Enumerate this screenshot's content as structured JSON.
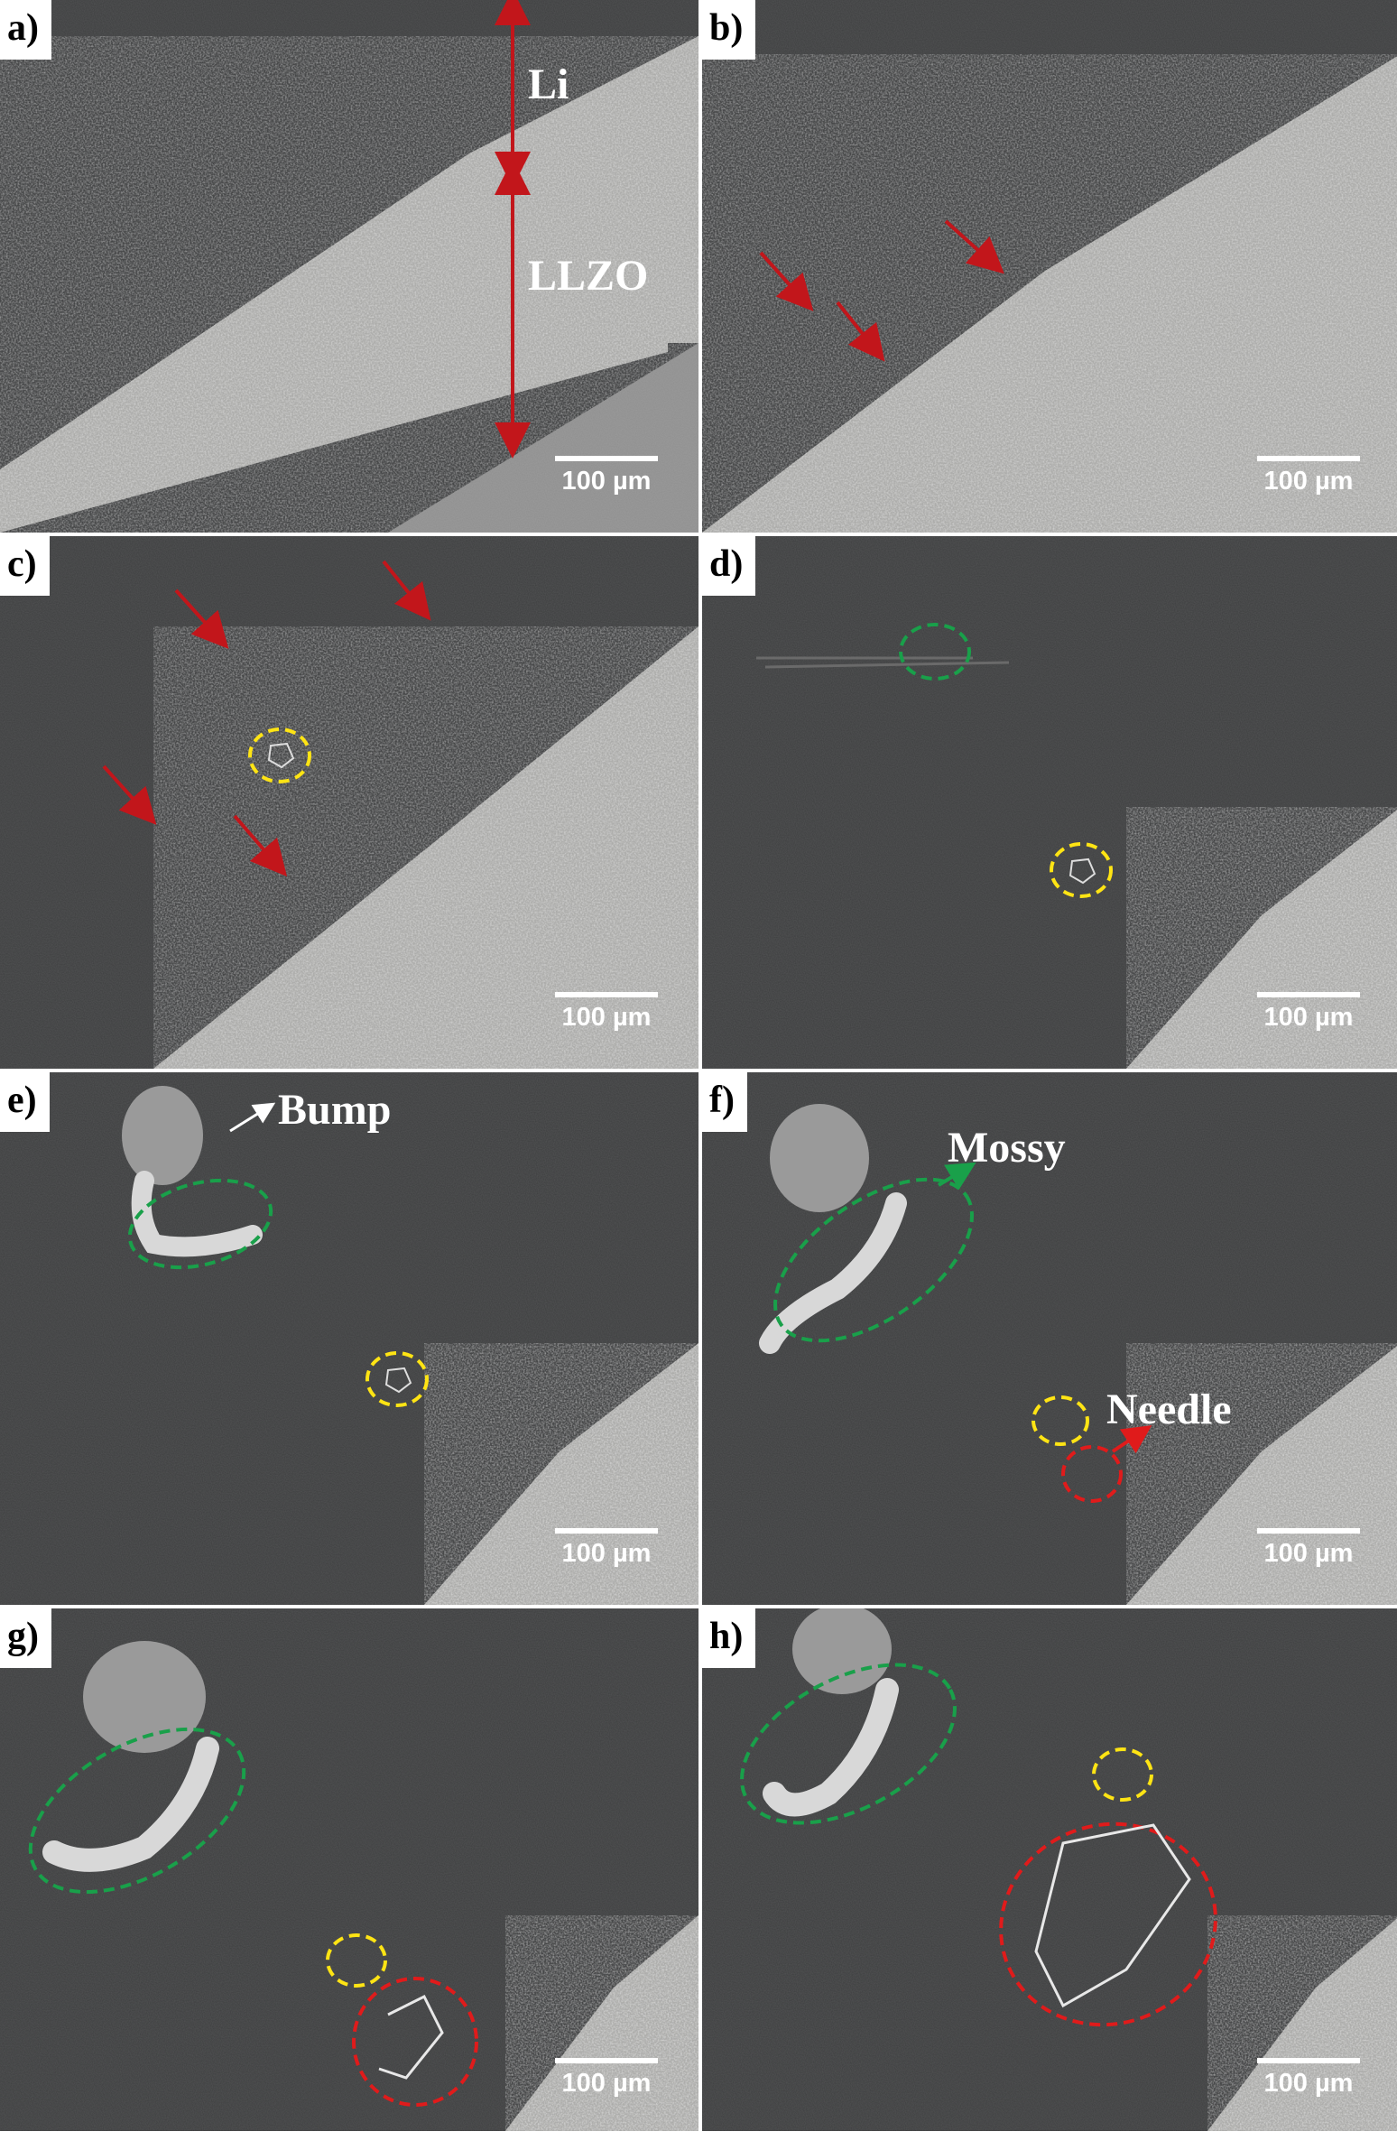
{
  "figure": {
    "panels": [
      {
        "label": "a)",
        "scale_bar": "100 µm"
      },
      {
        "label": "b)",
        "scale_bar": "100 µm"
      },
      {
        "label": "c)",
        "scale_bar": "100 µm"
      },
      {
        "label": "d)",
        "scale_bar": "100 µm"
      },
      {
        "label": "e)",
        "scale_bar": "100 µm"
      },
      {
        "label": "f)",
        "scale_bar": "100 µm"
      },
      {
        "label": "g)",
        "scale_bar": "100 µm"
      },
      {
        "label": "h)",
        "scale_bar": "100 µm"
      }
    ],
    "annotations": {
      "li": "Li",
      "llzo": "LLZO",
      "bump": "Bump",
      "mossy": "Mossy",
      "needle": "Needle"
    },
    "colors": {
      "li_metal": "#3c3d3e",
      "llzo_grain": "#a8a8a6",
      "arrow_red": "#c2161b",
      "circle_yellow": "#ffe414",
      "circle_green": "#19a04a",
      "circle_red": "#e01b1b"
    }
  }
}
